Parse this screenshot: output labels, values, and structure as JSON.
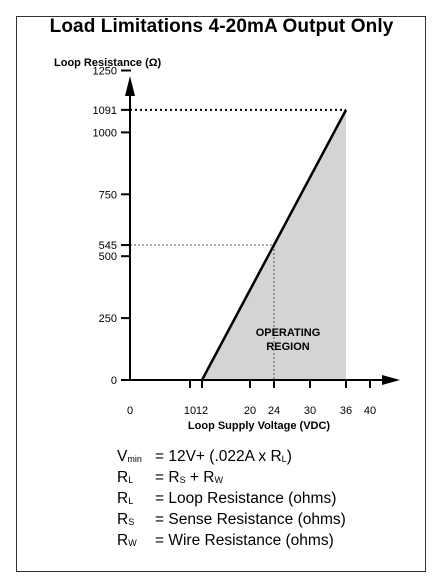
{
  "chart_data": {
    "type": "area",
    "title": "Load Limitations 4-20mA Output Only",
    "ylabel": "Loop Resistance (Ω)",
    "xlabel": "Loop Supply Voltage (VDC)",
    "x_ticks": [
      0,
      10,
      12,
      20,
      24,
      30,
      36,
      40
    ],
    "y_ticks": [
      0,
      250,
      500,
      545,
      750,
      1000,
      1091,
      1250
    ],
    "xlim": [
      0,
      42
    ],
    "ylim": [
      0,
      1300
    ],
    "line": {
      "x": [
        12,
        36
      ],
      "y": [
        0,
        1091
      ]
    },
    "region": {
      "x": [
        12,
        36,
        36
      ],
      "y": [
        0,
        1091,
        0
      ],
      "label_line1": "OPERATING",
      "label_line2": "REGION"
    },
    "guides": [
      {
        "x": 36,
        "y": 1091
      },
      {
        "x": 24,
        "y": 545
      }
    ],
    "grid": false,
    "colors": {
      "region_fill": "#d4d4d4",
      "line": "#000000"
    }
  },
  "equations": [
    {
      "sym": "V",
      "sub": "min",
      "rhs": "= 12V+ (.022A x R",
      "rhs_sub": "L",
      "tail": ")"
    },
    {
      "sym": "R",
      "sub": "L",
      "rhs": "= R",
      "rhs_sub": "S",
      "tail": " + R",
      "tail_sub": "W"
    },
    {
      "sym": "R",
      "sub": "L",
      "rhs": "= Loop Resistance (ohms)"
    },
    {
      "sym": "R",
      "sub": "S",
      "rhs": "= Sense Resistance (ohms)"
    },
    {
      "sym": "R",
      "sub": "W",
      "rhs": "= Wire Resistance (ohms)"
    }
  ]
}
